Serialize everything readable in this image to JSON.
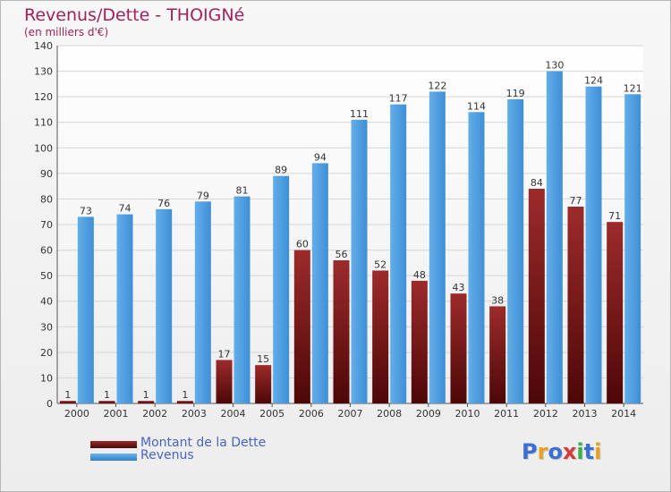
{
  "chart_data": {
    "type": "bar",
    "title": "Revenus/Dette - THOIGNé",
    "subtitle": "(en milliers d'€)",
    "categories": [
      "2000",
      "2001",
      "2002",
      "2003",
      "2004",
      "2005",
      "2006",
      "2007",
      "2008",
      "2009",
      "2010",
      "2011",
      "2012",
      "2013",
      "2014"
    ],
    "series": [
      {
        "name": "Montant de la Dette",
        "color": "#7a1a1a",
        "values": [
          1,
          1,
          1,
          1,
          17,
          15,
          60,
          56,
          52,
          48,
          43,
          38,
          84,
          77,
          71
        ]
      },
      {
        "name": "Revenus",
        "color": "#4f9fe0",
        "values": [
          73,
          74,
          76,
          79,
          81,
          89,
          94,
          111,
          117,
          122,
          114,
          119,
          130,
          124,
          121
        ]
      }
    ],
    "ylim": [
      0,
      140
    ],
    "yticks": [
      0,
      10,
      20,
      30,
      40,
      50,
      60,
      70,
      80,
      90,
      100,
      110,
      120,
      130,
      140
    ],
    "grid": true,
    "legend_position": "bottom-left"
  },
  "logo": {
    "letters": [
      "P",
      "r",
      "o",
      "x",
      "i",
      "t",
      "i"
    ],
    "colors": [
      "#3b6fd6",
      "#e8a020",
      "#3b6fd6",
      "#d63b3b",
      "#3bb04a",
      "#3b6fd6",
      "#e8a020"
    ]
  }
}
